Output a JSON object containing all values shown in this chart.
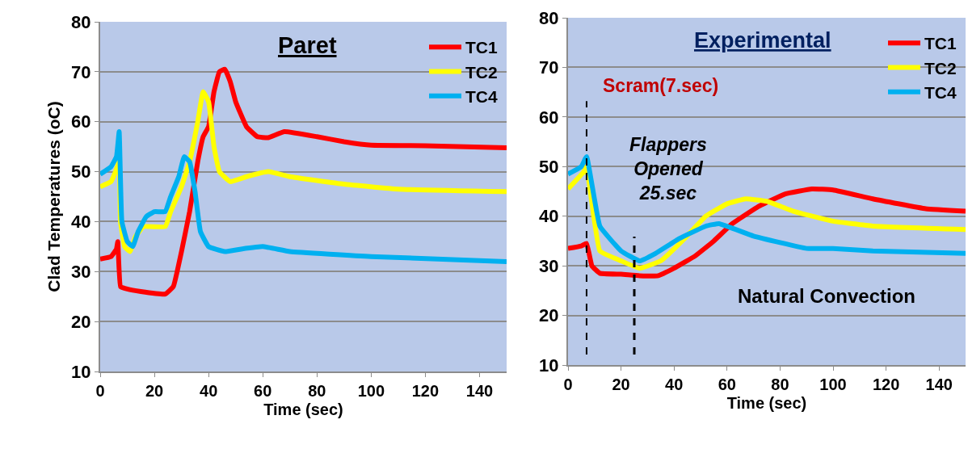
{
  "chart_data": [
    {
      "type": "line",
      "title": "Paret",
      "xlabel": "Time (sec)",
      "ylabel": "Clad Temperatures (oC)",
      "xlim": [
        0,
        150
      ],
      "xticks": [
        0,
        20,
        40,
        60,
        80,
        100,
        120,
        140
      ],
      "ylim": [
        10,
        80
      ],
      "yticks": [
        10,
        20,
        30,
        40,
        50,
        60,
        70,
        80
      ],
      "grid": "y",
      "legend": "top right",
      "series": [
        {
          "name": "TC1",
          "color": "#ff0000",
          "x": [
            0,
            4,
            6,
            6.5,
            7.5,
            10,
            15,
            24,
            27,
            30,
            33,
            36,
            38,
            40,
            42,
            44,
            46,
            48,
            50,
            54,
            58,
            62,
            68,
            80,
            90,
            100,
            120,
            150
          ],
          "values": [
            32.5,
            33,
            34.5,
            36,
            27,
            26.5,
            26,
            25.5,
            27,
            34,
            42,
            52,
            57,
            59,
            66,
            70,
            70.5,
            68,
            64,
            59,
            57,
            56.8,
            58,
            57,
            56,
            55.3,
            55.2,
            54.8
          ]
        },
        {
          "name": "TC2",
          "color": "#ffff00",
          "x": [
            0,
            4,
            6,
            7,
            7.5,
            9,
            11,
            13,
            16,
            24,
            26,
            30,
            33,
            36,
            38,
            40,
            42,
            44,
            48,
            54,
            62,
            70,
            90,
            110,
            150
          ],
          "values": [
            47,
            48,
            50.5,
            52,
            40,
            35,
            34,
            37,
            39,
            39,
            42,
            47,
            52,
            60,
            66,
            64,
            55,
            50,
            48,
            49,
            50,
            49,
            47.5,
            46.5,
            46
          ]
        },
        {
          "name": "TC4",
          "color": "#00b0f0",
          "x": [
            0,
            4,
            6,
            7,
            8,
            10,
            12,
            14,
            17,
            20,
            24,
            26,
            29,
            31,
            33,
            35,
            37,
            40,
            46,
            52,
            60,
            70,
            100,
            150
          ],
          "values": [
            49.5,
            51,
            53,
            58,
            40,
            36,
            35,
            38,
            41,
            42,
            42,
            45,
            49,
            53,
            52,
            46,
            38,
            35,
            34,
            34.5,
            35,
            34,
            33,
            32
          ]
        }
      ]
    },
    {
      "type": "line",
      "title": "Experimental",
      "xlabel": "Time (sec)",
      "xlim": [
        0,
        150
      ],
      "xticks": [
        0,
        20,
        40,
        60,
        80,
        100,
        120,
        140
      ],
      "ylim": [
        10,
        80
      ],
      "yticks": [
        10,
        20,
        30,
        40,
        50,
        60,
        70,
        80
      ],
      "grid": "y",
      "legend": "top right",
      "series": [
        {
          "name": "TC1",
          "color": "#ff0000",
          "x": [
            0,
            5,
            7,
            9,
            12,
            20,
            27,
            34,
            40,
            48,
            55,
            62,
            72,
            82,
            92,
            100,
            115,
            135,
            150
          ],
          "values": [
            33.5,
            34,
            34.5,
            30,
            28.5,
            28.3,
            28,
            28,
            29.5,
            32,
            35,
            38.5,
            42,
            44.5,
            45.5,
            45.3,
            43.5,
            41.5,
            41
          ]
        },
        {
          "name": "TC2",
          "color": "#ffff00",
          "x": [
            0,
            6,
            7,
            12,
            20,
            27,
            35,
            44,
            52,
            60,
            67,
            75,
            85,
            100,
            115,
            150
          ],
          "values": [
            45.5,
            49,
            50,
            33,
            31,
            29.5,
            31,
            35.5,
            40,
            42.5,
            43.5,
            43,
            41,
            39,
            38,
            37.3
          ]
        },
        {
          "name": "TC4",
          "color": "#00b0f0",
          "x": [
            0,
            5,
            7,
            12,
            20,
            27,
            33,
            42,
            52,
            57,
            70,
            90,
            100,
            115,
            150
          ],
          "values": [
            48.5,
            50,
            52,
            38,
            33,
            31,
            32.5,
            35.5,
            38,
            38.5,
            36,
            33.5,
            33.5,
            33,
            32.5
          ]
        }
      ],
      "ref_lines": [
        {
          "axis": "x",
          "value": 7,
          "label": "Scram(7.sec)",
          "color": "#000000",
          "line_style": "dashed"
        },
        {
          "axis": "x",
          "value": 25,
          "label": "Flappers\nOpened\n25.sec",
          "color": "#000000",
          "line_style": "dashed"
        }
      ],
      "annotations": [
        "Natural Convection"
      ]
    }
  ]
}
